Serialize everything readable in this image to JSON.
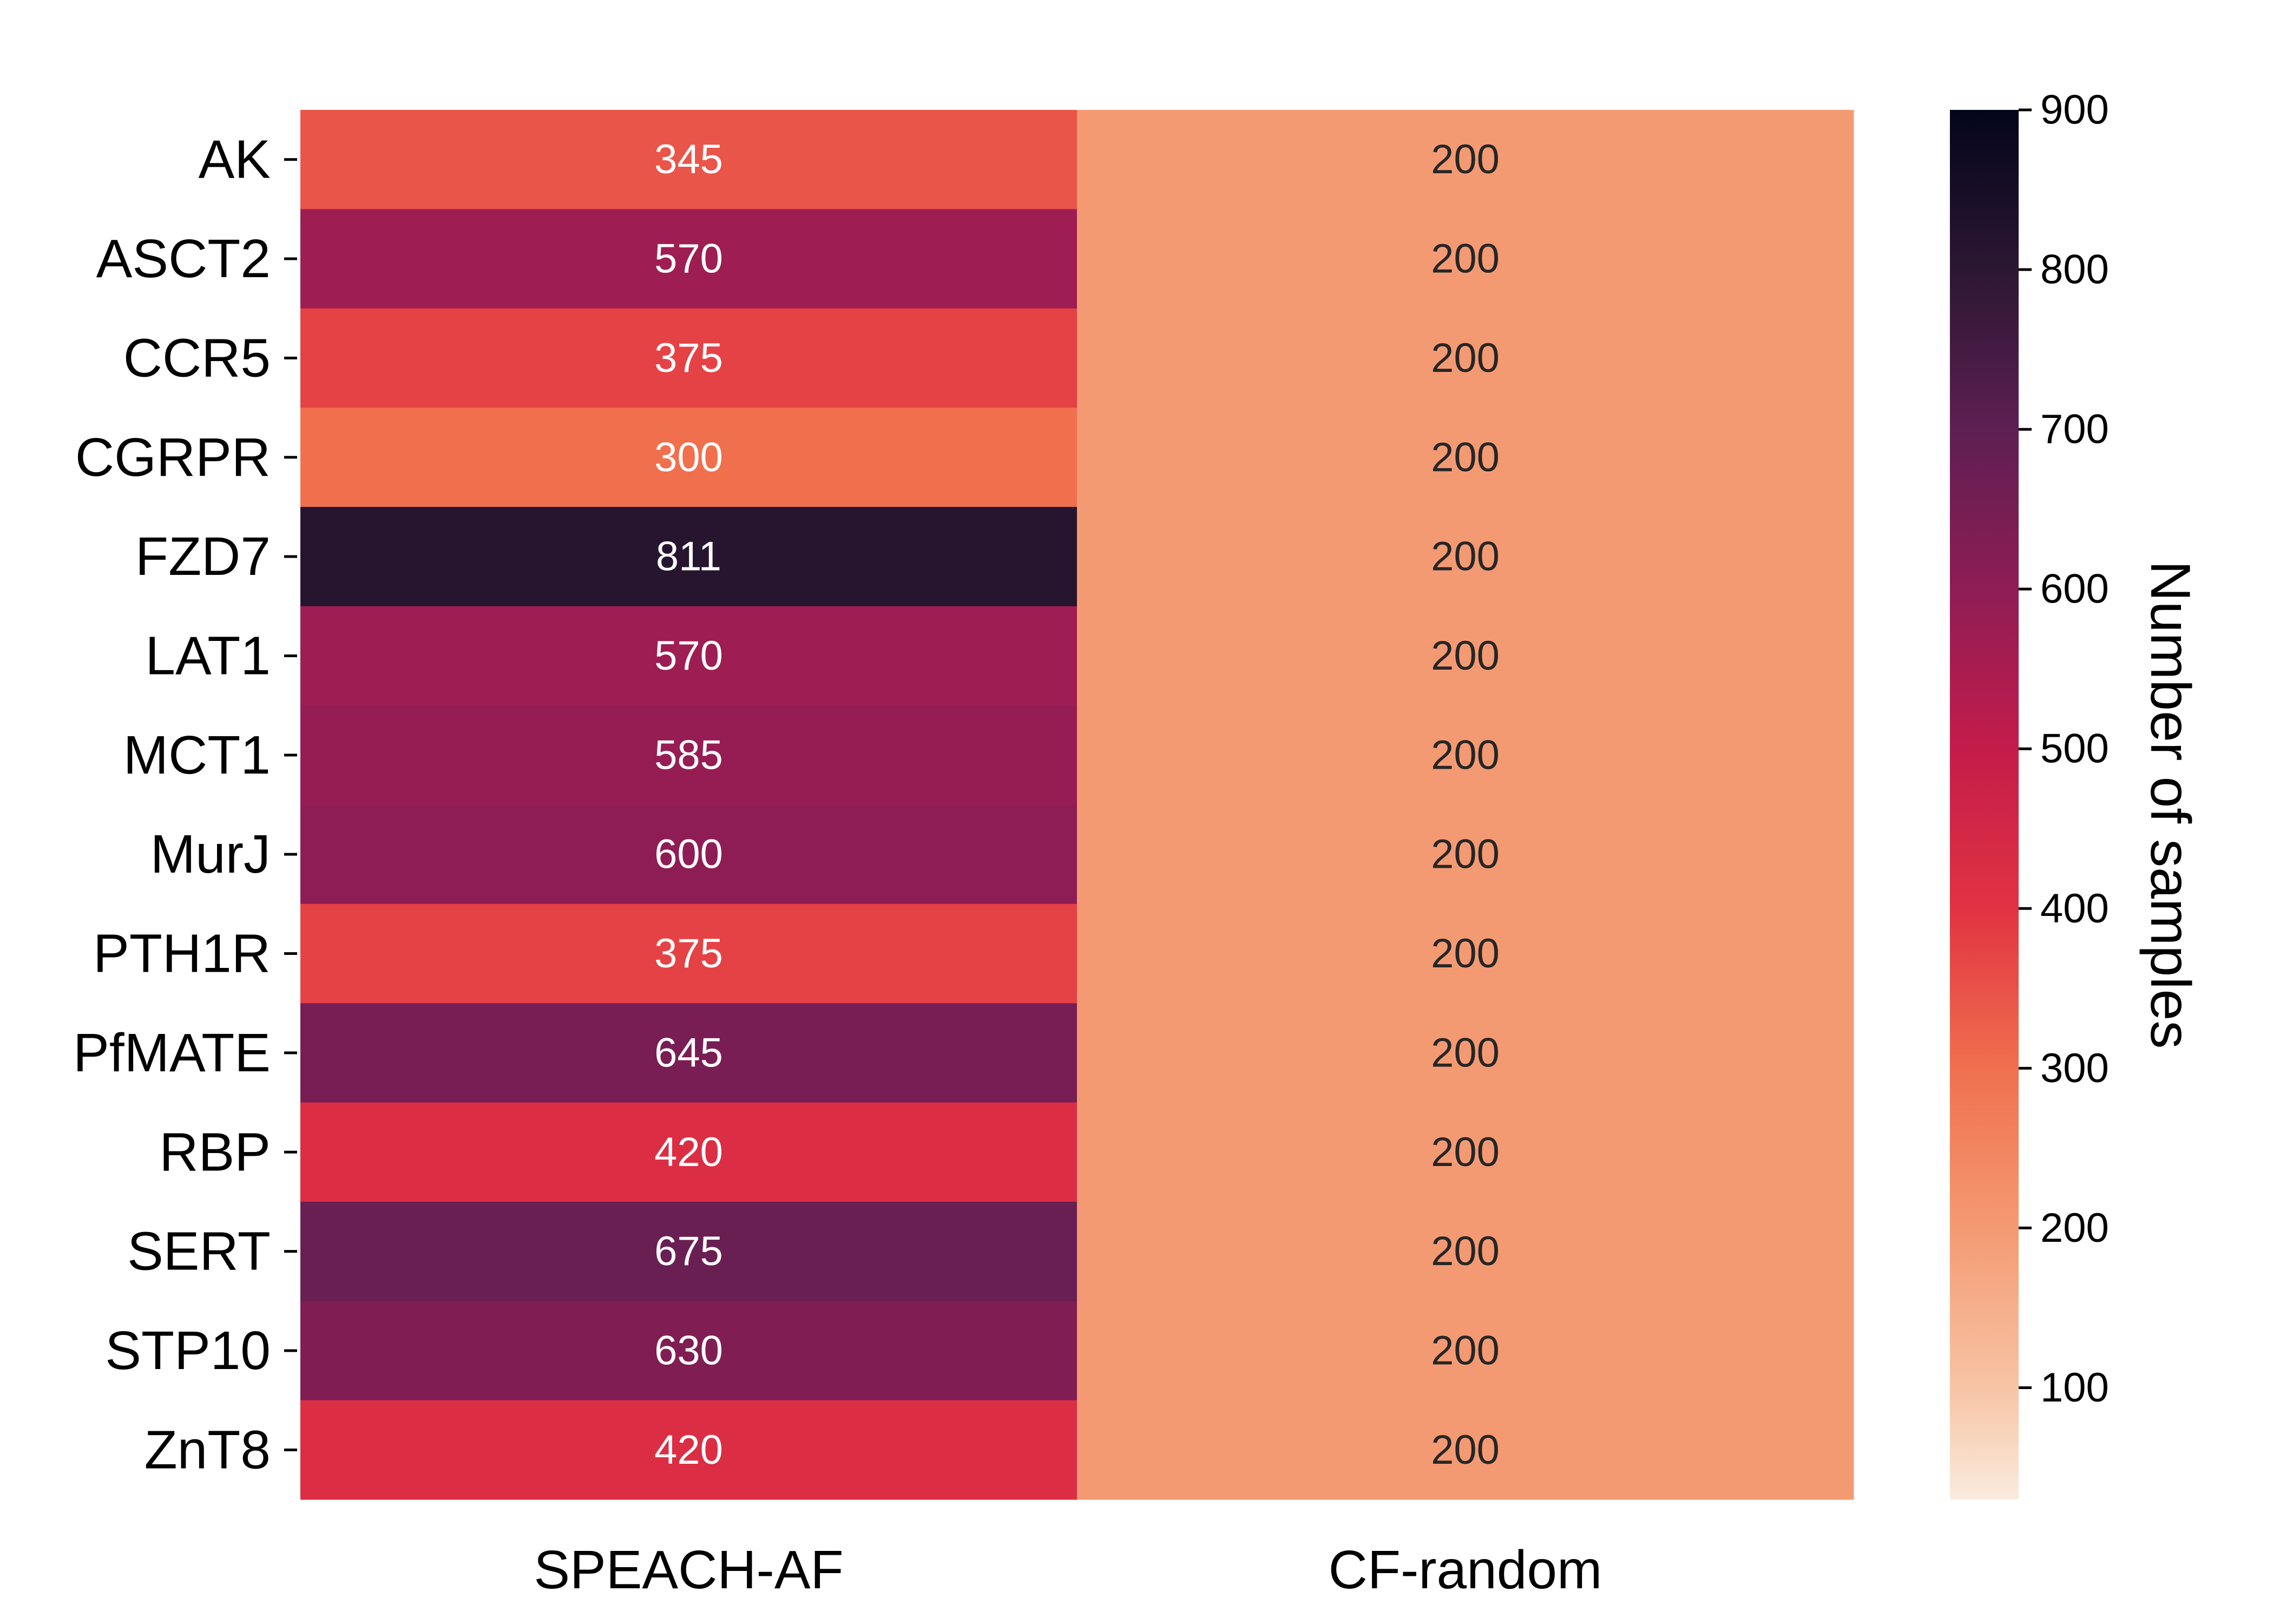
{
  "chart_data": {
    "type": "heatmap",
    "title": "",
    "xlabel": "",
    "ylabel": "",
    "columns": [
      "SPEACH-AF",
      "CF-random"
    ],
    "rows": [
      "AK",
      "ASCT2",
      "CCR5",
      "CGRPR",
      "FZD7",
      "LAT1",
      "MCT1",
      "MurJ",
      "PTH1R",
      "PfMATE",
      "RBP",
      "SERT",
      "STP10",
      "ZnT8"
    ],
    "values": [
      [
        345,
        200
      ],
      [
        570,
        200
      ],
      [
        375,
        200
      ],
      [
        300,
        200
      ],
      [
        811,
        200
      ],
      [
        570,
        200
      ],
      [
        585,
        200
      ],
      [
        600,
        200
      ],
      [
        375,
        200
      ],
      [
        645,
        200
      ],
      [
        420,
        200
      ],
      [
        675,
        200
      ],
      [
        630,
        200
      ],
      [
        420,
        200
      ]
    ],
    "annotations_shown": true,
    "colorbar": {
      "label": "Number of samples",
      "range": [
        30,
        900
      ],
      "ticks": [
        100,
        200,
        300,
        400,
        500,
        600,
        700,
        800,
        900
      ],
      "colormap": "rocket_r",
      "stops": [
        {
          "v": 30,
          "color": "#faebdd"
        },
        {
          "v": 100,
          "color": "#f7c4a5"
        },
        {
          "v": 200,
          "color": "#f49a73"
        },
        {
          "v": 300,
          "color": "#f0704e"
        },
        {
          "v": 400,
          "color": "#e13342"
        },
        {
          "v": 500,
          "color": "#c41c4a"
        },
        {
          "v": 600,
          "color": "#8e1d55"
        },
        {
          "v": 700,
          "color": "#5e1f52"
        },
        {
          "v": 800,
          "color": "#2c1733"
        },
        {
          "v": 900,
          "color": "#03051a"
        }
      ]
    }
  }
}
